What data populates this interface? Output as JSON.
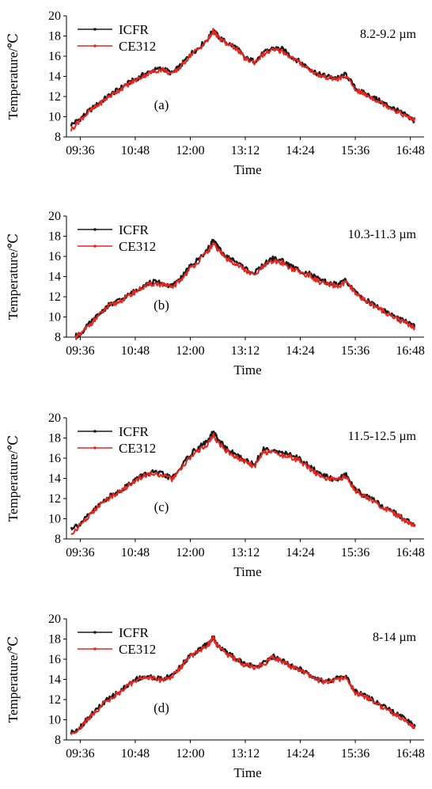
{
  "chart_data": [
    {
      "type": "line",
      "panel_label": "(a)",
      "band": "8.2-9.2 µm",
      "xlabel": "Time",
      "ylabel": "Temperature/℃",
      "x_ticks": [
        "09:36",
        "10:48",
        "12:00",
        "13:12",
        "14:24",
        "15:36",
        "16:48"
      ],
      "xlim": [
        "09:18",
        "17:06"
      ],
      "ylim": [
        8,
        20
      ],
      "y_ticks": [
        8,
        10,
        12,
        14,
        16,
        18,
        20
      ],
      "legend": "top-left",
      "grid": false,
      "x": [
        "09:24",
        "09:36",
        "09:48",
        "10:00",
        "10:12",
        "10:24",
        "10:36",
        "10:48",
        "11:00",
        "11:12",
        "11:24",
        "11:36",
        "11:48",
        "12:00",
        "12:12",
        "12:24",
        "12:30",
        "12:36",
        "12:48",
        "13:00",
        "13:12",
        "13:24",
        "13:36",
        "13:48",
        "14:00",
        "14:12",
        "14:24",
        "14:36",
        "14:48",
        "15:00",
        "15:12",
        "15:24",
        "15:36",
        "15:48",
        "16:00",
        "16:12",
        "16:24",
        "16:36",
        "16:48",
        "16:54"
      ],
      "series": [
        {
          "name": "ICFR",
          "color": "#1a1a1a",
          "values": [
            9.2,
            9.8,
            10.6,
            11.3,
            12.0,
            12.6,
            13.2,
            13.7,
            14.2,
            14.6,
            14.8,
            14.3,
            15.1,
            16.2,
            16.9,
            17.8,
            18.6,
            18.0,
            17.3,
            16.9,
            15.8,
            15.5,
            16.3,
            16.8,
            16.7,
            16.0,
            15.4,
            14.8,
            14.2,
            14.0,
            13.8,
            14.2,
            12.8,
            12.3,
            11.9,
            11.4,
            10.9,
            10.4,
            9.9,
            9.5
          ]
        },
        {
          "name": "CE312",
          "color": "#e8251f",
          "values": [
            8.7,
            9.7,
            10.5,
            11.2,
            11.9,
            12.5,
            13.1,
            13.6,
            14.1,
            14.5,
            14.7,
            14.2,
            15.0,
            16.1,
            16.8,
            17.7,
            18.5,
            17.9,
            17.2,
            16.8,
            15.7,
            15.4,
            16.2,
            16.6,
            16.5,
            15.9,
            15.3,
            14.7,
            14.1,
            13.9,
            13.7,
            14.0,
            12.7,
            12.2,
            11.8,
            11.3,
            10.8,
            10.3,
            9.8,
            9.7
          ]
        }
      ]
    },
    {
      "type": "line",
      "panel_label": "(b)",
      "band": "10.3-11.3 µm",
      "xlabel": "Time",
      "ylabel": "Temperature/℃",
      "x_ticks": [
        "09:36",
        "10:48",
        "12:00",
        "13:12",
        "14:24",
        "15:36",
        "16:48"
      ],
      "xlim": [
        "09:18",
        "17:06"
      ],
      "ylim": [
        8,
        20
      ],
      "y_ticks": [
        8,
        10,
        12,
        14,
        16,
        18,
        20
      ],
      "legend": "top-left",
      "grid": false,
      "x": [
        "09:30",
        "09:36",
        "09:48",
        "10:00",
        "10:12",
        "10:24",
        "10:36",
        "10:48",
        "11:00",
        "11:12",
        "11:24",
        "11:36",
        "11:48",
        "12:00",
        "12:12",
        "12:24",
        "12:30",
        "12:36",
        "12:48",
        "13:00",
        "13:12",
        "13:24",
        "13:36",
        "13:48",
        "14:00",
        "14:12",
        "14:24",
        "14:36",
        "14:48",
        "15:00",
        "15:12",
        "15:24",
        "15:36",
        "15:48",
        "16:00",
        "16:12",
        "16:24",
        "16:36",
        "16:48",
        "16:54"
      ],
      "series": [
        {
          "name": "ICFR",
          "color": "#1a1a1a",
          "values": [
            8.1,
            8.3,
            9.3,
            10.2,
            11.1,
            11.5,
            12.0,
            12.6,
            13.2,
            13.5,
            13.3,
            13.0,
            13.9,
            15.0,
            15.8,
            16.8,
            17.6,
            16.9,
            15.9,
            15.5,
            14.8,
            14.3,
            15.2,
            15.8,
            15.6,
            15.0,
            14.6,
            14.3,
            13.7,
            13.4,
            13.2,
            13.6,
            12.4,
            11.8,
            11.2,
            10.7,
            10.2,
            9.7,
            9.3,
            9.0
          ]
        },
        {
          "name": "CE312",
          "color": "#e8251f",
          "values": [
            8.0,
            8.2,
            9.2,
            10.1,
            11.0,
            11.4,
            11.9,
            12.5,
            13.0,
            13.3,
            13.2,
            12.9,
            13.7,
            14.8,
            15.6,
            16.6,
            17.2,
            16.7,
            15.7,
            15.3,
            14.6,
            14.1,
            15.0,
            15.5,
            15.4,
            14.8,
            14.4,
            14.1,
            13.5,
            13.2,
            13.0,
            13.4,
            12.3,
            11.7,
            11.1,
            10.6,
            10.1,
            9.6,
            9.2,
            8.9
          ]
        }
      ]
    },
    {
      "type": "line",
      "panel_label": "(c)",
      "band": "11.5-12.5 µm",
      "xlabel": "Time",
      "ylabel": "Temperature/℃",
      "x_ticks": [
        "09:36",
        "10:48",
        "12:00",
        "13:12",
        "14:24",
        "15:36",
        "16:48"
      ],
      "xlim": [
        "09:18",
        "17:06"
      ],
      "ylim": [
        8,
        20
      ],
      "y_ticks": [
        8,
        10,
        12,
        14,
        16,
        18,
        20
      ],
      "legend": "top-left",
      "grid": false,
      "x": [
        "09:24",
        "09:36",
        "09:48",
        "10:00",
        "10:12",
        "10:24",
        "10:36",
        "10:48",
        "11:00",
        "11:12",
        "11:24",
        "11:36",
        "11:48",
        "12:00",
        "12:12",
        "12:24",
        "12:30",
        "12:36",
        "12:48",
        "13:00",
        "13:12",
        "13:24",
        "13:36",
        "13:48",
        "14:00",
        "14:12",
        "14:24",
        "14:36",
        "14:48",
        "15:00",
        "15:12",
        "15:24",
        "15:36",
        "15:48",
        "16:00",
        "16:12",
        "16:24",
        "16:36",
        "16:48",
        "16:54"
      ],
      "series": [
        {
          "name": "ICFR",
          "color": "#1a1a1a",
          "values": [
            9.1,
            9.5,
            10.4,
            11.3,
            12.1,
            12.6,
            13.2,
            13.9,
            14.4,
            14.6,
            14.4,
            14.0,
            15.1,
            16.4,
            17.1,
            17.8,
            18.6,
            17.9,
            16.9,
            16.3,
            15.8,
            15.4,
            16.9,
            16.8,
            16.5,
            16.3,
            15.9,
            15.2,
            14.5,
            14.1,
            13.9,
            14.4,
            12.9,
            12.3,
            11.8,
            11.2,
            10.7,
            10.2,
            9.6,
            9.3
          ]
        },
        {
          "name": "CE312",
          "color": "#e8251f",
          "values": [
            8.4,
            9.4,
            10.3,
            11.2,
            12.0,
            12.5,
            13.1,
            13.8,
            14.3,
            14.5,
            14.3,
            13.9,
            14.9,
            16.1,
            16.8,
            17.5,
            18.3,
            17.6,
            16.7,
            16.1,
            15.6,
            15.2,
            16.6,
            16.6,
            16.3,
            16.1,
            15.7,
            15.0,
            14.3,
            14.0,
            13.8,
            14.2,
            12.8,
            12.2,
            11.7,
            11.1,
            10.6,
            10.1,
            9.5,
            9.2
          ]
        }
      ]
    },
    {
      "type": "line",
      "panel_label": "(d)",
      "band": "8-14 µm",
      "xlabel": "Time",
      "ylabel": "Temperature/℃",
      "x_ticks": [
        "09:36",
        "10:48",
        "12:00",
        "13:12",
        "14:24",
        "15:36",
        "16:48"
      ],
      "xlim": [
        "09:18",
        "17:06"
      ],
      "ylim": [
        8,
        20
      ],
      "y_ticks": [
        8,
        10,
        12,
        14,
        16,
        18,
        20
      ],
      "legend": "top-left",
      "grid": false,
      "x": [
        "09:24",
        "09:36",
        "09:48",
        "10:00",
        "10:12",
        "10:24",
        "10:36",
        "10:48",
        "11:00",
        "11:12",
        "11:24",
        "11:36",
        "11:48",
        "12:00",
        "12:12",
        "12:24",
        "12:30",
        "12:36",
        "12:48",
        "13:00",
        "13:12",
        "13:24",
        "13:36",
        "13:48",
        "14:00",
        "14:12",
        "14:24",
        "14:36",
        "14:48",
        "15:00",
        "15:12",
        "15:24",
        "15:36",
        "15:48",
        "16:00",
        "16:12",
        "16:24",
        "16:36",
        "16:48",
        "16:54"
      ],
      "series": [
        {
          "name": "ICFR",
          "color": "#1a1a1a",
          "values": [
            8.7,
            9.3,
            10.3,
            11.2,
            12.0,
            12.6,
            13.3,
            14.0,
            14.3,
            14.2,
            14.0,
            14.4,
            15.3,
            16.4,
            16.9,
            17.6,
            18.2,
            17.4,
            16.6,
            16.1,
            15.5,
            15.3,
            15.6,
            16.3,
            15.9,
            15.3,
            15.0,
            14.5,
            14.0,
            13.8,
            14.1,
            14.2,
            12.8,
            12.4,
            11.9,
            11.3,
            10.8,
            10.3,
            9.7,
            9.3
          ]
        },
        {
          "name": "CE312",
          "color": "#e8251f",
          "values": [
            8.6,
            9.2,
            10.2,
            11.1,
            11.9,
            12.5,
            13.2,
            13.9,
            14.2,
            14.1,
            13.9,
            14.3,
            15.2,
            16.3,
            16.8,
            17.5,
            18.1,
            17.3,
            16.5,
            16.0,
            15.4,
            15.2,
            15.5,
            16.2,
            15.8,
            15.2,
            14.9,
            14.4,
            13.9,
            13.7,
            14.0,
            14.1,
            12.7,
            12.3,
            11.8,
            11.2,
            10.7,
            10.2,
            9.6,
            9.2
          ]
        }
      ]
    }
  ]
}
